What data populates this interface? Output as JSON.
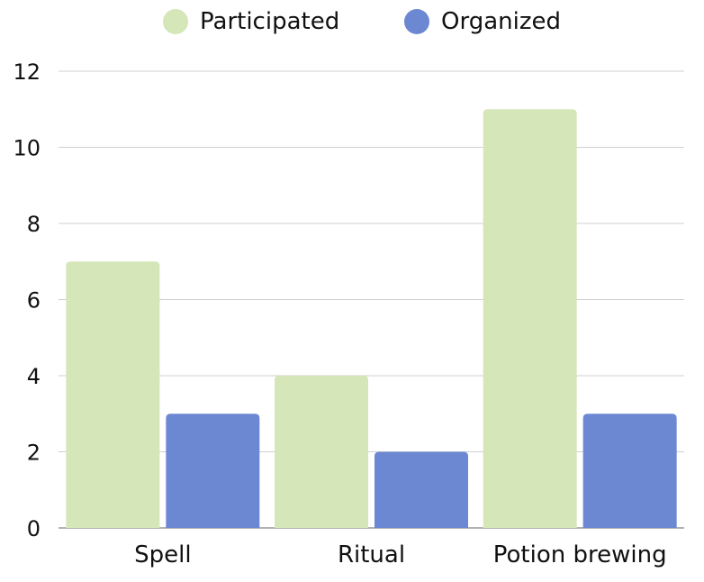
{
  "chart_data": {
    "type": "bar",
    "categories": [
      "Spell",
      "Ritual",
      "Potion brewing"
    ],
    "series": [
      {
        "name": "Participated",
        "color": "#d5e6b8",
        "values": [
          7,
          4,
          11
        ]
      },
      {
        "name": "Organized",
        "color": "#6d88d3",
        "values": [
          3,
          2,
          3
        ]
      }
    ],
    "yticks": [
      "0",
      "2",
      "4",
      "6",
      "8",
      "10",
      "12"
    ],
    "ylim": [
      0,
      12
    ],
    "grid": true,
    "legend_position": "top-center"
  }
}
